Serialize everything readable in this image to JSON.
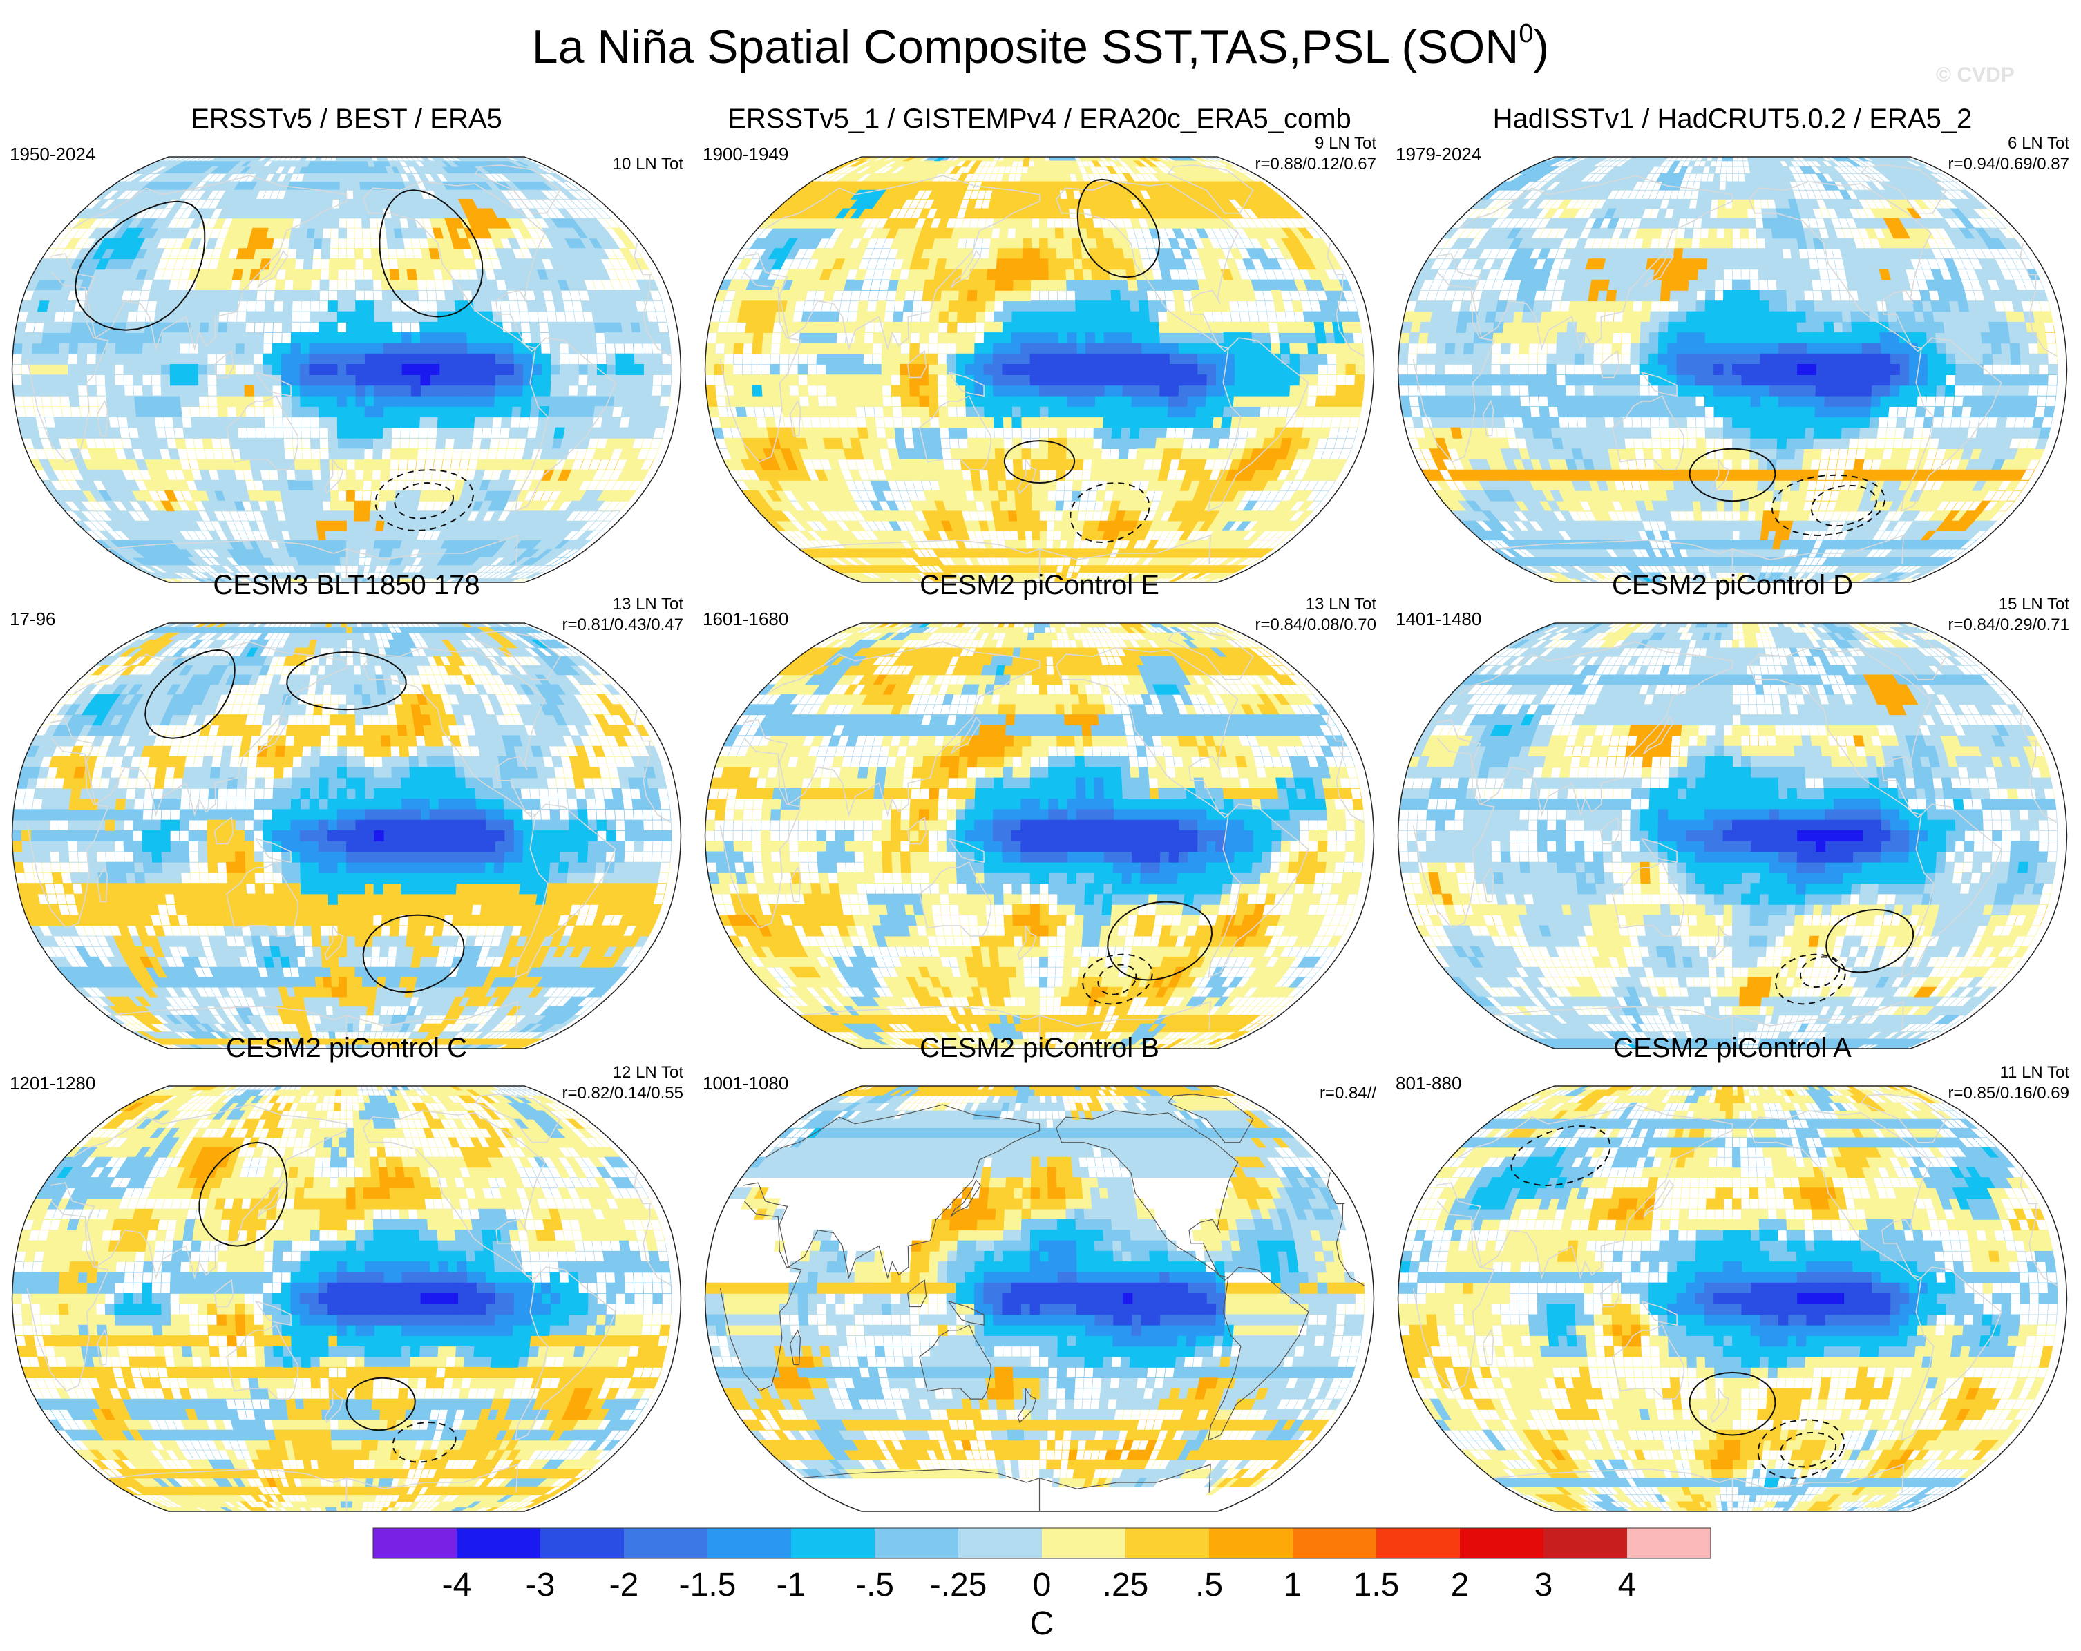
{
  "title": {
    "main": "La Niña Spatial Composite SST,TAS,PSL (SON",
    "superscript": "0",
    "close": ")"
  },
  "watermark": "© CVDP",
  "chart_data": {
    "type": "heatmap",
    "title": "La Niña Spatial Composite SST,TAS,PSL (SON0)",
    "projection": "Robinson global, Pacific-centered",
    "units": "C",
    "colorbar": {
      "labels": [
        "-4",
        "-3",
        "-2",
        "-1.5",
        "-1",
        "-.5",
        "-.25",
        "0",
        ".25",
        ".5",
        "1",
        "1.5",
        "2",
        "3",
        "4"
      ],
      "levels": [
        -4,
        -3,
        -2,
        -1.5,
        -1,
        -0.5,
        -0.25,
        0,
        0.25,
        0.5,
        1,
        1.5,
        2,
        3,
        4
      ],
      "colors": [
        "#7a22e4",
        "#1a1af0",
        "#2a4ee3",
        "#3c78e6",
        "#2a98f2",
        "#12c0f2",
        "#7fc8f0",
        "#b4dcf0",
        "#fbf59a",
        "#fdd032",
        "#fdaa08",
        "#fc7b08",
        "#f73c10",
        "#e40a0a",
        "#c81e1e",
        "#fbb8b8"
      ]
    },
    "contours": "PSL anomalies: solid = positive, dashed = negative",
    "panels": [
      {
        "title": "ERSSTv5 / BEST / ERA5",
        "period": "1950-2024",
        "count": "10 LN Tot",
        "r": "",
        "land_data": true
      },
      {
        "title": "ERSSTv5_1 / GISTEMPv4 / ERA20c_ERA5_comb",
        "period": "1900-1949",
        "count": "9 LN Tot",
        "r": "r=0.88/0.12/0.67",
        "land_data": true
      },
      {
        "title": "HadISSTv1 / HadCRUT5.0.2 / ERA5_2",
        "period": "1979-2024",
        "count": "6 LN Tot",
        "r": "r=0.94/0.69/0.87",
        "land_data": true
      },
      {
        "title": "CESM3 BLT1850 178",
        "period": "17-96",
        "count": "13 LN Tot",
        "r": "r=0.81/0.43/0.47",
        "land_data": true
      },
      {
        "title": "CESM2 piControl E",
        "period": "1601-1680",
        "count": "13 LN Tot",
        "r": "r=0.84/0.08/0.70",
        "land_data": true
      },
      {
        "title": "CESM2 piControl D",
        "period": "1401-1480",
        "count": "15 LN Tot",
        "r": "r=0.84/0.29/0.71",
        "land_data": true
      },
      {
        "title": "CESM2 piControl C",
        "period": "1201-1280",
        "count": "12 LN Tot",
        "r": "r=0.82/0.14/0.55",
        "land_data": true
      },
      {
        "title": "CESM2 piControl B",
        "period": "1001-1080",
        "count": "",
        "r": "r=0.84//",
        "land_data": false
      },
      {
        "title": "CESM2 piControl A",
        "period": "801-880",
        "count": "11 LN Tot",
        "r": "r=0.85/0.16/0.69",
        "land_data": true
      }
    ]
  }
}
